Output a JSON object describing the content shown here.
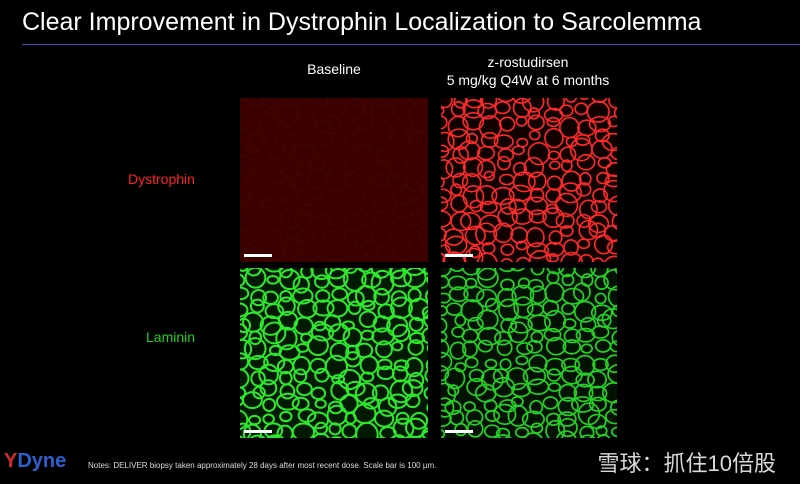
{
  "header": {
    "title": "Clear Improvement in Dystrophin Localization to Sarcolemma"
  },
  "columns": [
    {
      "lines": [
        "Baseline"
      ]
    },
    {
      "lines": [
        "z-rostudirsen",
        "5 mg/kg Q4W at 6 months"
      ]
    }
  ],
  "rows": [
    "Dystrophin",
    "Laminin"
  ],
  "footer": {
    "logo": "Dyne",
    "notes": "Notes: DELIVER biopsy taken approximately 28 days after most recent dose. Scale bar is 100 µm.",
    "watermark": "雪球：抓住10倍股"
  }
}
